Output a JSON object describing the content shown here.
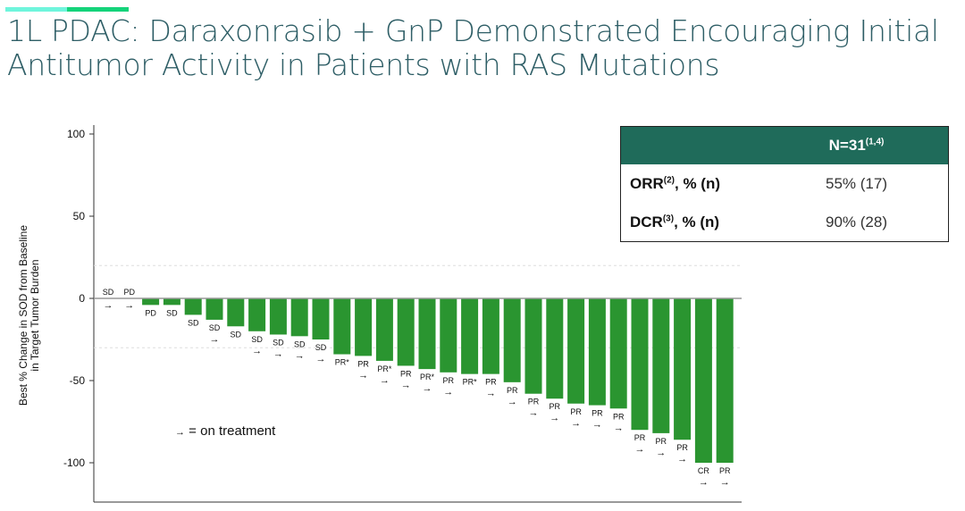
{
  "title": "1L PDAC: Daraxonrasib + GnP Demonstrated Encouraging Initial Antitumor Activity in Patients with RAS Mutations",
  "colors": {
    "accent_light": "#6ff5dc",
    "accent_green": "#14d37a",
    "bar": "#2a9530",
    "table_header": "#1f6b5a",
    "title": "#2e5e66"
  },
  "table": {
    "header": "N=31",
    "header_sup": "(1,4)",
    "rows": [
      {
        "label": "ORR",
        "sup": "(2)",
        "suffix": ", % (n)",
        "value": "55% (17)"
      },
      {
        "label": "DCR",
        "sup": "(3)",
        "suffix": ", % (n)",
        "value": "90% (28)"
      }
    ]
  },
  "legend": {
    "arrow": "→",
    "text": "= on treatment"
  },
  "chart_data": {
    "type": "bar",
    "ylabel": "Best % Change in SOD from Baseline in Target Tumor Burden",
    "ylabel_lines": [
      "Best % Change in SOD from Baseline",
      "in Target Tumor Burden"
    ],
    "ylim": [
      -120,
      105
    ],
    "yticks": [
      100,
      50,
      0,
      -50,
      -100
    ],
    "reference_lines": [
      20,
      -30
    ],
    "grid": false,
    "values": [
      0,
      0,
      -4,
      -4,
      -10,
      -13,
      -17,
      -20,
      -22,
      -23,
      -25,
      -34,
      -35,
      -38,
      -41,
      -43,
      -45,
      -46,
      -46,
      -51,
      -58,
      -61,
      -64,
      -65,
      -67,
      -80,
      -82,
      -86,
      -100,
      -100
    ],
    "responses": [
      "SD",
      "PD",
      "PD",
      "SD",
      "SD",
      "SD",
      "SD",
      "SD",
      "SD",
      "SD",
      "SD",
      "PR*",
      "PR",
      "PR*",
      "PR",
      "PR*",
      "PR",
      "PR*",
      "PR",
      "PR",
      "PR",
      "PR",
      "PR",
      "PR",
      "PR",
      "PR",
      "PR",
      "PR",
      "CR",
      "PR"
    ],
    "on_treatment": [
      true,
      true,
      false,
      false,
      false,
      true,
      false,
      true,
      true,
      true,
      true,
      false,
      true,
      true,
      true,
      true,
      true,
      false,
      true,
      true,
      true,
      true,
      true,
      true,
      true,
      true,
      true,
      true,
      true,
      true
    ]
  }
}
